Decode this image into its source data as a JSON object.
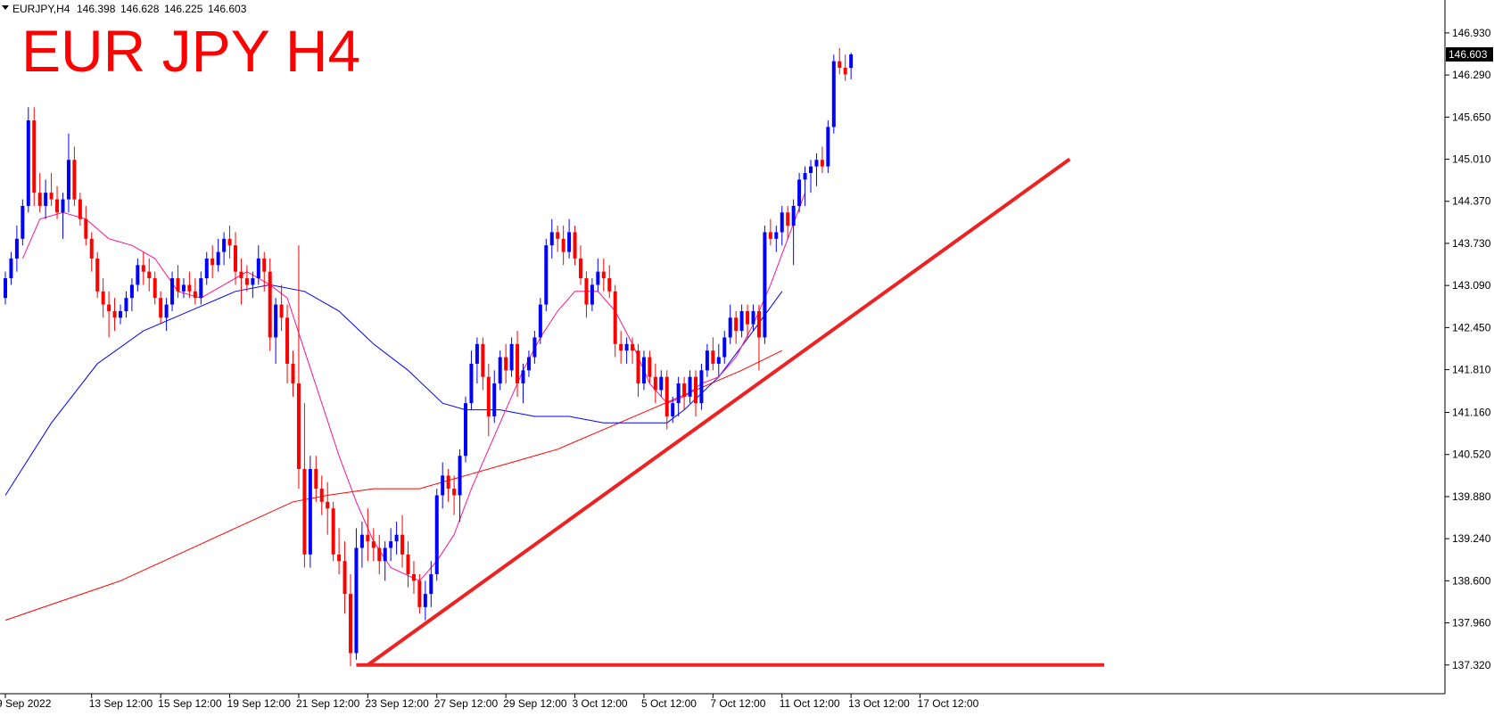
{
  "chart_data": {
    "type": "candlestick",
    "symbol_header": "EURJPY,H4",
    "ohlc_header": {
      "open": "146.398",
      "high": "146.628",
      "low": "146.225",
      "close": "146.603"
    },
    "title": "EUR JPY H4",
    "current_price_label": "146.603",
    "current_price": 146.603,
    "ylim": [
      137.1,
      147.2
    ],
    "y_ticks": [
      "146.930",
      "146.290",
      "145.650",
      "145.010",
      "144.370",
      "143.730",
      "143.090",
      "142.450",
      "141.810",
      "141.160",
      "140.520",
      "139.880",
      "139.240",
      "138.600",
      "137.960",
      "137.320"
    ],
    "x_ticks": [
      {
        "label": "9 Sep 2022",
        "bar": 0
      },
      {
        "label": "13 Sep 12:00",
        "bar": 15
      },
      {
        "label": "15 Sep 12:00",
        "bar": 27
      },
      {
        "label": "19 Sep 12:00",
        "bar": 39
      },
      {
        "label": "21 Sep 12:00",
        "bar": 51
      },
      {
        "label": "23 Sep 12:00",
        "bar": 63
      },
      {
        "label": "27 Sep 12:00",
        "bar": 75
      },
      {
        "label": "29 Sep 12:00",
        "bar": 87
      },
      {
        "label": "3 Oct 12:00",
        "bar": 99
      },
      {
        "label": "5 Oct 12:00",
        "bar": 111
      },
      {
        "label": "7 Oct 12:00",
        "bar": 123
      },
      {
        "label": "11 Oct 12:00",
        "bar": 135
      },
      {
        "label": "13 Oct 12:00",
        "bar": 147
      },
      {
        "label": "17 Oct 12:00",
        "bar": 159
      }
    ],
    "candles": [
      [
        142.9,
        143.3,
        142.8,
        143.2
      ],
      [
        143.2,
        143.6,
        143.1,
        143.5
      ],
      [
        143.5,
        144.0,
        143.3,
        143.8
      ],
      [
        143.8,
        144.4,
        143.7,
        144.3
      ],
      [
        144.3,
        145.8,
        144.2,
        145.6
      ],
      [
        145.6,
        145.8,
        144.3,
        144.5
      ],
      [
        144.5,
        144.8,
        144.2,
        144.3
      ],
      [
        144.3,
        144.7,
        144.1,
        144.5
      ],
      [
        144.5,
        144.8,
        144.3,
        144.4
      ],
      [
        144.4,
        144.6,
        144.1,
        144.2
      ],
      [
        144.2,
        144.5,
        143.8,
        144.4
      ],
      [
        144.4,
        145.4,
        144.2,
        145.0
      ],
      [
        145.0,
        145.2,
        144.3,
        144.4
      ],
      [
        144.4,
        144.5,
        144.0,
        144.1
      ],
      [
        144.1,
        144.3,
        143.7,
        143.8
      ],
      [
        143.8,
        143.9,
        143.3,
        143.5
      ],
      [
        143.5,
        143.6,
        142.9,
        143.0
      ],
      [
        143.0,
        143.2,
        142.6,
        142.8
      ],
      [
        142.8,
        143.0,
        142.3,
        142.7
      ],
      [
        142.7,
        142.9,
        142.4,
        142.6
      ],
      [
        142.6,
        142.8,
        142.5,
        142.7
      ],
      [
        142.7,
        143.0,
        142.6,
        142.9
      ],
      [
        142.9,
        143.2,
        142.7,
        143.1
      ],
      [
        143.1,
        143.5,
        143.0,
        143.4
      ],
      [
        143.4,
        143.6,
        143.1,
        143.3
      ],
      [
        143.3,
        143.5,
        143.0,
        143.2
      ],
      [
        143.2,
        143.3,
        142.8,
        142.9
      ],
      [
        142.9,
        143.0,
        142.5,
        142.6
      ],
      [
        142.6,
        142.9,
        142.4,
        142.8
      ],
      [
        142.8,
        143.3,
        142.7,
        143.2
      ],
      [
        143.2,
        143.4,
        142.9,
        143.0
      ],
      [
        143.0,
        143.2,
        142.9,
        143.1
      ],
      [
        143.1,
        143.3,
        142.9,
        143.0
      ],
      [
        143.0,
        143.2,
        142.8,
        142.9
      ],
      [
        142.9,
        143.3,
        142.8,
        143.2
      ],
      [
        143.2,
        143.6,
        143.1,
        143.5
      ],
      [
        143.5,
        143.7,
        143.2,
        143.4
      ],
      [
        143.4,
        143.8,
        143.3,
        143.6
      ],
      [
        143.6,
        143.9,
        143.4,
        143.8
      ],
      [
        143.8,
        144.0,
        143.5,
        143.7
      ],
      [
        143.7,
        143.9,
        143.1,
        143.3
      ],
      [
        143.3,
        143.5,
        142.8,
        143.2
      ],
      [
        143.2,
        143.4,
        143.0,
        143.1
      ],
      [
        143.1,
        143.3,
        142.9,
        143.2
      ],
      [
        143.2,
        143.7,
        143.1,
        143.5
      ],
      [
        143.5,
        143.6,
        143.0,
        143.3
      ],
      [
        143.3,
        143.5,
        142.1,
        142.3
      ],
      [
        142.3,
        142.9,
        141.9,
        142.8
      ],
      [
        142.8,
        143.1,
        142.4,
        142.6
      ],
      [
        142.6,
        142.8,
        141.6,
        141.9
      ],
      [
        141.9,
        142.1,
        141.4,
        141.6
      ],
      [
        141.6,
        143.7,
        140.0,
        140.3
      ],
      [
        140.3,
        141.3,
        138.8,
        139.0
      ],
      [
        139.0,
        140.5,
        138.8,
        140.3
      ],
      [
        140.3,
        140.5,
        139.8,
        140.0
      ],
      [
        140.0,
        140.2,
        139.6,
        139.8
      ],
      [
        139.8,
        140.1,
        139.3,
        139.7
      ],
      [
        139.7,
        139.8,
        138.9,
        139.0
      ],
      [
        139.0,
        139.4,
        138.7,
        138.9
      ],
      [
        138.9,
        139.2,
        138.1,
        138.4
      ],
      [
        138.4,
        138.7,
        137.3,
        137.5
      ],
      [
        137.5,
        139.4,
        137.4,
        139.1
      ],
      [
        139.1,
        139.5,
        138.8,
        139.3
      ],
      [
        139.3,
        139.7,
        138.9,
        139.2
      ],
      [
        139.2,
        139.4,
        138.9,
        139.1
      ],
      [
        139.1,
        139.3,
        138.7,
        138.9
      ],
      [
        138.9,
        139.2,
        138.6,
        139.1
      ],
      [
        139.1,
        139.4,
        138.9,
        139.2
      ],
      [
        139.2,
        139.5,
        139.0,
        139.3
      ],
      [
        139.3,
        139.6,
        138.8,
        139.0
      ],
      [
        139.0,
        139.2,
        138.5,
        138.7
      ],
      [
        138.7,
        138.9,
        138.4,
        138.6
      ],
      [
        138.6,
        138.7,
        138.1,
        138.2
      ],
      [
        138.2,
        138.6,
        138.0,
        138.4
      ],
      [
        138.4,
        138.9,
        138.2,
        138.7
      ],
      [
        138.7,
        140.0,
        138.6,
        139.9
      ],
      [
        139.9,
        140.4,
        139.7,
        140.2
      ],
      [
        140.2,
        140.3,
        139.8,
        140.0
      ],
      [
        140.0,
        140.2,
        139.6,
        139.9
      ],
      [
        139.9,
        140.6,
        139.5,
        140.5
      ],
      [
        140.5,
        141.4,
        140.4,
        141.3
      ],
      [
        141.3,
        142.1,
        141.2,
        141.9
      ],
      [
        141.9,
        142.3,
        141.6,
        142.2
      ],
      [
        142.2,
        142.3,
        141.5,
        141.7
      ],
      [
        141.7,
        141.9,
        140.8,
        141.1
      ],
      [
        141.1,
        141.8,
        141.0,
        141.6
      ],
      [
        141.6,
        142.1,
        141.5,
        142.0
      ],
      [
        142.0,
        142.2,
        141.6,
        141.8
      ],
      [
        141.8,
        142.3,
        141.7,
        142.2
      ],
      [
        142.2,
        142.4,
        141.4,
        141.6
      ],
      [
        141.6,
        141.9,
        141.3,
        141.8
      ],
      [
        141.8,
        142.1,
        141.7,
        142.0
      ],
      [
        142.0,
        142.4,
        141.9,
        142.3
      ],
      [
        142.3,
        142.9,
        142.2,
        142.8
      ],
      [
        142.8,
        143.8,
        142.7,
        143.7
      ],
      [
        143.7,
        144.1,
        143.5,
        143.9
      ],
      [
        143.9,
        144.0,
        143.6,
        143.8
      ],
      [
        143.8,
        144.0,
        143.4,
        143.6
      ],
      [
        143.6,
        144.1,
        143.5,
        143.9
      ],
      [
        143.9,
        144.0,
        143.4,
        143.5
      ],
      [
        143.5,
        143.7,
        143.1,
        143.2
      ],
      [
        143.2,
        143.3,
        142.6,
        142.8
      ],
      [
        142.8,
        143.2,
        142.7,
        143.1
      ],
      [
        143.1,
        143.5,
        143.0,
        143.3
      ],
      [
        143.3,
        143.5,
        143.0,
        143.2
      ],
      [
        143.2,
        143.4,
        142.9,
        143.0
      ],
      [
        143.0,
        143.1,
        142.0,
        142.2
      ],
      [
        142.2,
        142.4,
        141.9,
        142.1
      ],
      [
        142.1,
        142.3,
        141.9,
        142.2
      ],
      [
        142.2,
        142.3,
        141.9,
        142.1
      ],
      [
        142.1,
        142.2,
        141.4,
        141.6
      ],
      [
        141.6,
        142.1,
        141.5,
        142.0
      ],
      [
        142.0,
        142.1,
        141.6,
        141.7
      ],
      [
        141.7,
        141.9,
        141.3,
        141.5
      ],
      [
        141.5,
        141.8,
        141.4,
        141.7
      ],
      [
        141.7,
        141.8,
        140.9,
        141.1
      ],
      [
        141.1,
        141.4,
        141.0,
        141.3
      ],
      [
        141.3,
        141.7,
        141.1,
        141.6
      ],
      [
        141.6,
        141.7,
        141.2,
        141.4
      ],
      [
        141.4,
        141.8,
        141.3,
        141.7
      ],
      [
        141.7,
        141.8,
        141.1,
        141.3
      ],
      [
        141.3,
        141.9,
        141.2,
        141.8
      ],
      [
        141.8,
        142.2,
        141.7,
        142.1
      ],
      [
        142.1,
        142.3,
        141.8,
        141.9
      ],
      [
        141.9,
        142.2,
        141.7,
        142.0
      ],
      [
        142.0,
        142.4,
        141.9,
        142.3
      ],
      [
        142.3,
        142.8,
        142.2,
        142.6
      ],
      [
        142.6,
        142.7,
        142.2,
        142.4
      ],
      [
        142.4,
        142.8,
        142.3,
        142.7
      ],
      [
        142.7,
        142.8,
        142.3,
        142.5
      ],
      [
        142.5,
        142.8,
        142.4,
        142.7
      ],
      [
        142.7,
        142.8,
        141.8,
        142.3
      ],
      [
        142.3,
        144.0,
        142.2,
        143.9
      ],
      [
        143.9,
        144.1,
        143.7,
        143.8
      ],
      [
        143.8,
        144.0,
        143.6,
        143.9
      ],
      [
        143.9,
        144.3,
        143.7,
        144.2
      ],
      [
        144.2,
        144.3,
        143.8,
        144.0
      ],
      [
        144.0,
        144.4,
        143.4,
        144.3
      ],
      [
        144.3,
        144.8,
        144.2,
        144.7
      ],
      [
        144.7,
        144.9,
        144.3,
        144.8
      ],
      [
        144.8,
        145.0,
        144.5,
        144.9
      ],
      [
        144.9,
        145.1,
        144.6,
        145.0
      ],
      [
        145.0,
        145.2,
        144.8,
        144.9
      ],
      [
        144.9,
        145.6,
        144.8,
        145.5
      ],
      [
        145.5,
        146.6,
        145.4,
        146.5
      ],
      [
        146.5,
        146.7,
        146.3,
        146.4
      ],
      [
        146.4,
        146.6,
        146.2,
        146.3
      ],
      [
        146.398,
        146.628,
        146.225,
        146.603
      ]
    ],
    "ma_fast_pink": [
      [
        3,
        143.5
      ],
      [
        6,
        144.1
      ],
      [
        10,
        144.2
      ],
      [
        14,
        144.1
      ],
      [
        18,
        143.8
      ],
      [
        22,
        143.7
      ],
      [
        26,
        143.5
      ],
      [
        30,
        143.0
      ],
      [
        34,
        142.9
      ],
      [
        38,
        143.1
      ],
      [
        42,
        143.3
      ],
      [
        46,
        143.1
      ],
      [
        49,
        142.9
      ],
      [
        52,
        142.1
      ],
      [
        55,
        141.3
      ],
      [
        58,
        140.5
      ],
      [
        61,
        139.8
      ],
      [
        64,
        139.2
      ],
      [
        67,
        138.8
      ],
      [
        72,
        138.6
      ],
      [
        75,
        138.9
      ],
      [
        78,
        139.3
      ],
      [
        81,
        140.0
      ],
      [
        84,
        140.6
      ],
      [
        87,
        141.2
      ],
      [
        90,
        141.8
      ],
      [
        93,
        142.3
      ],
      [
        96,
        142.7
      ],
      [
        99,
        143.0
      ],
      [
        103,
        143.0
      ],
      [
        106,
        142.7
      ],
      [
        109,
        142.2
      ],
      [
        112,
        141.6
      ],
      [
        115,
        141.3
      ],
      [
        118,
        141.4
      ],
      [
        121,
        141.6
      ],
      [
        124,
        141.7
      ],
      [
        127,
        142.0
      ],
      [
        130,
        142.5
      ],
      [
        133,
        143.1
      ],
      [
        136,
        143.8
      ],
      [
        139,
        144.5
      ]
    ],
    "ma_slow_blue": [
      [
        0,
        139.9
      ],
      [
        8,
        141.0
      ],
      [
        16,
        141.9
      ],
      [
        24,
        142.4
      ],
      [
        32,
        142.7
      ],
      [
        40,
        143.0
      ],
      [
        46,
        143.1
      ],
      [
        52,
        143.0
      ],
      [
        58,
        142.7
      ],
      [
        64,
        142.2
      ],
      [
        70,
        141.8
      ],
      [
        76,
        141.3
      ],
      [
        80,
        141.2
      ],
      [
        86,
        141.2
      ],
      [
        92,
        141.1
      ],
      [
        98,
        141.1
      ],
      [
        104,
        141.0
      ],
      [
        110,
        141.0
      ],
      [
        115,
        141.0
      ],
      [
        118,
        141.2
      ],
      [
        124,
        141.7
      ],
      [
        130,
        142.4
      ],
      [
        135,
        143.0
      ]
    ],
    "ma_long_red": [
      [
        0,
        138.0
      ],
      [
        10,
        138.3
      ],
      [
        20,
        138.6
      ],
      [
        30,
        139.0
      ],
      [
        40,
        139.4
      ],
      [
        50,
        139.8
      ],
      [
        56,
        139.9
      ],
      [
        64,
        140.0
      ],
      [
        72,
        140.0
      ],
      [
        80,
        140.2
      ],
      [
        88,
        140.4
      ],
      [
        96,
        140.6
      ],
      [
        104,
        140.9
      ],
      [
        112,
        141.2
      ],
      [
        120,
        141.5
      ],
      [
        128,
        141.8
      ],
      [
        135,
        142.1
      ]
    ],
    "trendlines": [
      {
        "from": [
          63,
          137.32
        ],
        "to": [
          185,
          145.01
        ]
      },
      {
        "from": [
          61,
          137.32
        ],
        "to": [
          191,
          137.32
        ]
      }
    ]
  }
}
